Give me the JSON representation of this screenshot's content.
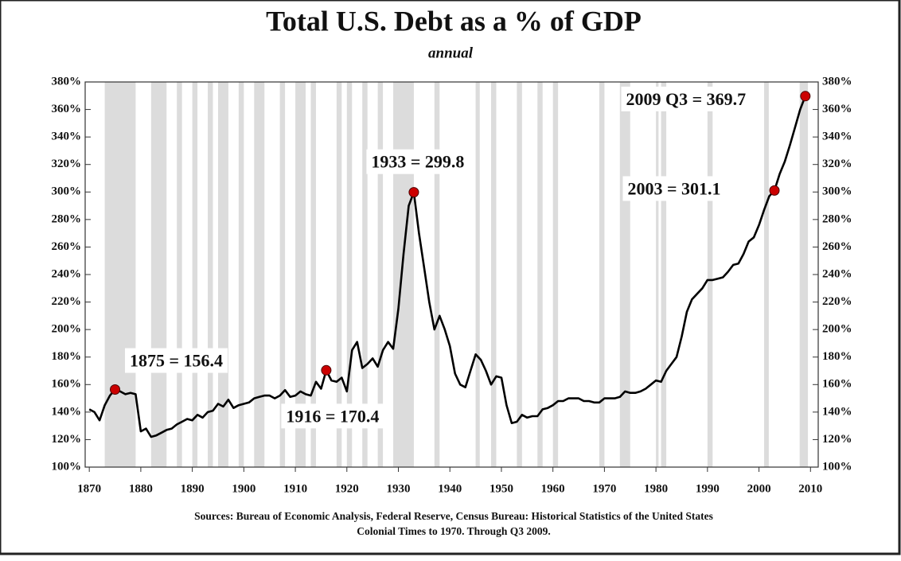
{
  "chart_data": {
    "type": "line",
    "title": "Total U.S. Debt as a % of GDP",
    "subtitle": "annual",
    "source": [
      "Sources: Bureau of Economic Analysis, Federal Reserve, Census Bureau: Historical Statistics of the United States",
      "Colonial Times to 1970.   Through Q3 2009."
    ],
    "x": [
      1870,
      1871,
      1872,
      1873,
      1874,
      1875,
      1876,
      1877,
      1878,
      1879,
      1880,
      1881,
      1882,
      1883,
      1884,
      1885,
      1886,
      1887,
      1888,
      1889,
      1890,
      1891,
      1892,
      1893,
      1894,
      1895,
      1896,
      1897,
      1898,
      1899,
      1900,
      1901,
      1902,
      1903,
      1904,
      1905,
      1906,
      1907,
      1908,
      1909,
      1910,
      1911,
      1912,
      1913,
      1914,
      1915,
      1916,
      1917,
      1918,
      1919,
      1920,
      1921,
      1922,
      1923,
      1924,
      1925,
      1926,
      1927,
      1928,
      1929,
      1930,
      1931,
      1932,
      1933,
      1934,
      1935,
      1936,
      1937,
      1938,
      1939,
      1940,
      1941,
      1942,
      1943,
      1944,
      1945,
      1946,
      1947,
      1948,
      1949,
      1950,
      1951,
      1952,
      1953,
      1954,
      1955,
      1956,
      1957,
      1958,
      1959,
      1960,
      1961,
      1962,
      1963,
      1964,
      1965,
      1966,
      1967,
      1968,
      1969,
      1970,
      1971,
      1972,
      1973,
      1974,
      1975,
      1976,
      1977,
      1978,
      1979,
      1980,
      1981,
      1982,
      1983,
      1984,
      1985,
      1986,
      1987,
      1988,
      1989,
      1990,
      1991,
      1992,
      1993,
      1994,
      1995,
      1996,
      1997,
      1998,
      1999,
      2000,
      2001,
      2002,
      2003,
      2004,
      2005,
      2006,
      2007,
      2008,
      2009
    ],
    "series": [
      {
        "color": "#000000",
        "values": [
          142,
          140,
          134,
          145,
          152,
          156.4,
          155,
          153,
          154,
          153,
          126,
          128,
          122,
          123,
          125,
          127,
          128,
          131,
          133,
          135,
          134,
          138,
          136,
          140,
          141,
          146,
          144,
          149,
          143,
          145,
          146,
          147,
          150,
          151,
          152,
          152,
          150,
          152,
          156,
          151,
          152,
          155,
          153,
          152,
          162,
          157,
          170.4,
          163,
          162,
          165,
          155,
          185,
          191,
          172,
          175,
          179,
          173,
          185,
          191,
          186,
          215,
          255,
          290,
          299.8,
          270,
          245,
          220,
          200,
          210,
          200,
          188,
          168,
          160,
          158,
          170,
          182,
          178,
          170,
          160,
          166,
          165,
          145,
          132,
          133,
          138,
          136,
          137,
          137,
          142,
          143,
          145,
          148,
          148,
          150,
          150,
          150,
          148,
          148,
          147,
          147,
          150,
          150,
          150,
          151,
          155,
          154,
          154,
          155,
          157,
          160,
          163,
          162,
          170,
          175,
          180,
          195,
          213,
          222,
          226,
          230,
          236,
          236,
          237,
          238,
          242,
          247,
          248,
          255,
          264,
          267,
          276,
          287,
          297,
          301.1,
          313,
          322,
          334,
          347,
          360,
          369.7
        ]
      }
    ],
    "annotations": [
      {
        "text": "1875 = 156.4",
        "x": 1875,
        "y": 156.4
      },
      {
        "text": "1916 = 170.4",
        "x": 1916,
        "y": 170.4
      },
      {
        "text": "1933 = 299.8",
        "x": 1933,
        "y": 299.8
      },
      {
        "text": "2003 = 301.1",
        "x": 2003,
        "y": 301.1
      },
      {
        "text": "2009 Q3 = 369.7",
        "x": 2009,
        "y": 369.7
      }
    ],
    "annotation_color": "#cc0000",
    "shading": [
      [
        1873,
        1879
      ],
      [
        1882,
        1885
      ],
      [
        1887,
        1888
      ],
      [
        1890,
        1891
      ],
      [
        1893,
        1894
      ],
      [
        1895,
        1897
      ],
      [
        1899,
        1900
      ],
      [
        1902,
        1904
      ],
      [
        1907,
        1908
      ],
      [
        1910,
        1912
      ],
      [
        1913,
        1914
      ],
      [
        1918,
        1919
      ],
      [
        1920,
        1921
      ],
      [
        1923,
        1924
      ],
      [
        1926,
        1927
      ],
      [
        1929,
        1933
      ],
      [
        1937,
        1938
      ],
      [
        1945,
        1945.8
      ],
      [
        1948,
        1949
      ],
      [
        1953,
        1954
      ],
      [
        1957,
        1958
      ],
      [
        1960,
        1961
      ],
      [
        1969,
        1970
      ],
      [
        1973,
        1975
      ],
      [
        1980,
        1980.5
      ],
      [
        1981,
        1982
      ],
      [
        1990,
        1991
      ],
      [
        2001,
        2001.9
      ],
      [
        2007.9,
        2009.5
      ]
    ],
    "shading_color": "#dcdcdc",
    "xlim": [
      1869.2,
      2011.5
    ],
    "xticks": [
      1870,
      1880,
      1890,
      1900,
      1910,
      1920,
      1930,
      1940,
      1950,
      1960,
      1970,
      1980,
      1990,
      2000,
      2010
    ],
    "ylim": [
      100,
      380
    ],
    "yticks": [
      {
        "value": 100,
        "label": "100%"
      },
      {
        "value": 120,
        "label": "120%"
      },
      {
        "value": 140,
        "label": "140%"
      },
      {
        "value": 160,
        "label": "160%"
      },
      {
        "value": 180,
        "label": "180%"
      },
      {
        "value": 200,
        "label": "200%"
      },
      {
        "value": 220,
        "label": "220%"
      },
      {
        "value": 240,
        "label": "240%"
      },
      {
        "value": 260,
        "label": "260%"
      },
      {
        "value": 280,
        "label": "280%"
      },
      {
        "value": 300,
        "label": "300%"
      },
      {
        "value": 320,
        "label": "320%"
      },
      {
        "value": 340,
        "label": "340%"
      },
      {
        "value": 360,
        "label": "360%"
      },
      {
        "value": 380,
        "label": "380%"
      }
    ],
    "y2lim": [
      100,
      380
    ],
    "y2ticks": [
      {
        "value": 100,
        "label": "100%"
      },
      {
        "value": 120,
        "label": "120%"
      },
      {
        "value": 140,
        "label": "140%"
      },
      {
        "value": 160,
        "label": "160%"
      },
      {
        "value": 180,
        "label": "180%"
      },
      {
        "value": 200,
        "label": "200%"
      },
      {
        "value": 220,
        "label": "220%"
      },
      {
        "value": 240,
        "label": "240%"
      },
      {
        "value": 260,
        "label": "260%"
      },
      {
        "value": 280,
        "label": "280%"
      },
      {
        "value": 300,
        "label": "300%"
      },
      {
        "value": 320,
        "label": "320%"
      },
      {
        "value": 340,
        "label": "340%"
      },
      {
        "value": 360,
        "label": "360%"
      },
      {
        "value": 380,
        "label": "380%"
      }
    ],
    "grid": false
  }
}
